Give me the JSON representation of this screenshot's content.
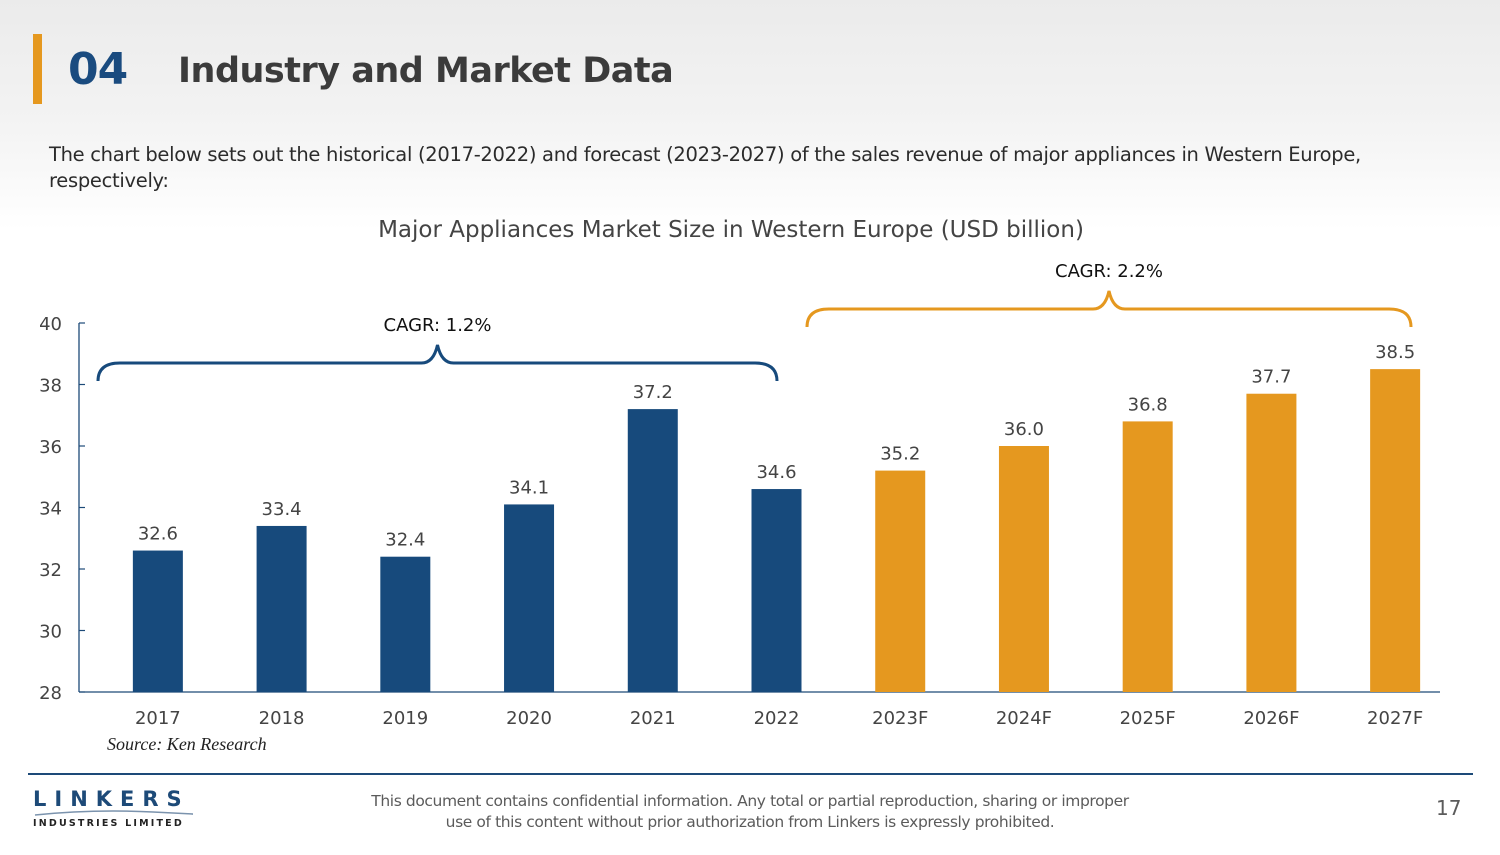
{
  "header": {
    "section_number": "04",
    "title": "Industry and Market Data"
  },
  "intro_text": "The chart below sets out the historical (2017-2022) and forecast (2023-2027) of the sales revenue of major appliances in Western Europe, respectively:",
  "colors": {
    "accent": "#e5981f",
    "historical": "#174a7c",
    "forecast": "#e5981f",
    "section_number": "#1a4b7f"
  },
  "chart_data": {
    "type": "bar",
    "title": "Major Appliances Market Size in Western Europe (USD billion)",
    "xlabel": "",
    "ylabel": "",
    "ylim": [
      28,
      40
    ],
    "yticks": [
      28,
      30,
      32,
      34,
      36,
      38,
      40
    ],
    "grid": false,
    "categories": [
      "2017",
      "2018",
      "2019",
      "2020",
      "2021",
      "2022",
      "2023F",
      "2024F",
      "2025F",
      "2026F",
      "2027F"
    ],
    "values": [
      32.6,
      33.4,
      32.4,
      34.1,
      37.2,
      34.6,
      35.2,
      36.0,
      36.8,
      37.7,
      38.5
    ],
    "series": [
      {
        "name": "Historical",
        "categories": [
          "2017",
          "2018",
          "2019",
          "2020",
          "2021",
          "2022"
        ],
        "values": [
          32.6,
          33.4,
          32.4,
          34.1,
          37.2,
          34.6
        ],
        "color": "#174a7c"
      },
      {
        "name": "Forecast",
        "categories": [
          "2023F",
          "2024F",
          "2025F",
          "2026F",
          "2027F"
        ],
        "values": [
          35.2,
          36.0,
          36.8,
          37.7,
          38.5
        ],
        "color": "#e5981f"
      }
    ],
    "data_labels": [
      "32.6",
      "33.4",
      "32.4",
      "34.1",
      "37.2",
      "34.6",
      "35.2",
      "36.0",
      "36.8",
      "37.7",
      "38.5"
    ],
    "annotations": [
      {
        "text": "CAGR: 1.2%",
        "span": [
          "2017",
          "2022"
        ],
        "color": "#174a7c"
      },
      {
        "text": "CAGR: 2.2%",
        "span": [
          "2023F",
          "2027F"
        ],
        "color": "#e5981f"
      }
    ]
  },
  "source": "Source: Ken Research",
  "footer": {
    "logo_main": "LINKERS",
    "logo_sub": "INDUSTRIES LIMITED",
    "disclaimer_line1": "This document contains confidential information. Any total or partial reproduction, sharing or improper",
    "disclaimer_line2": "use of this content without prior authorization from Linkers is expressly prohibited.",
    "page_number": "17"
  }
}
